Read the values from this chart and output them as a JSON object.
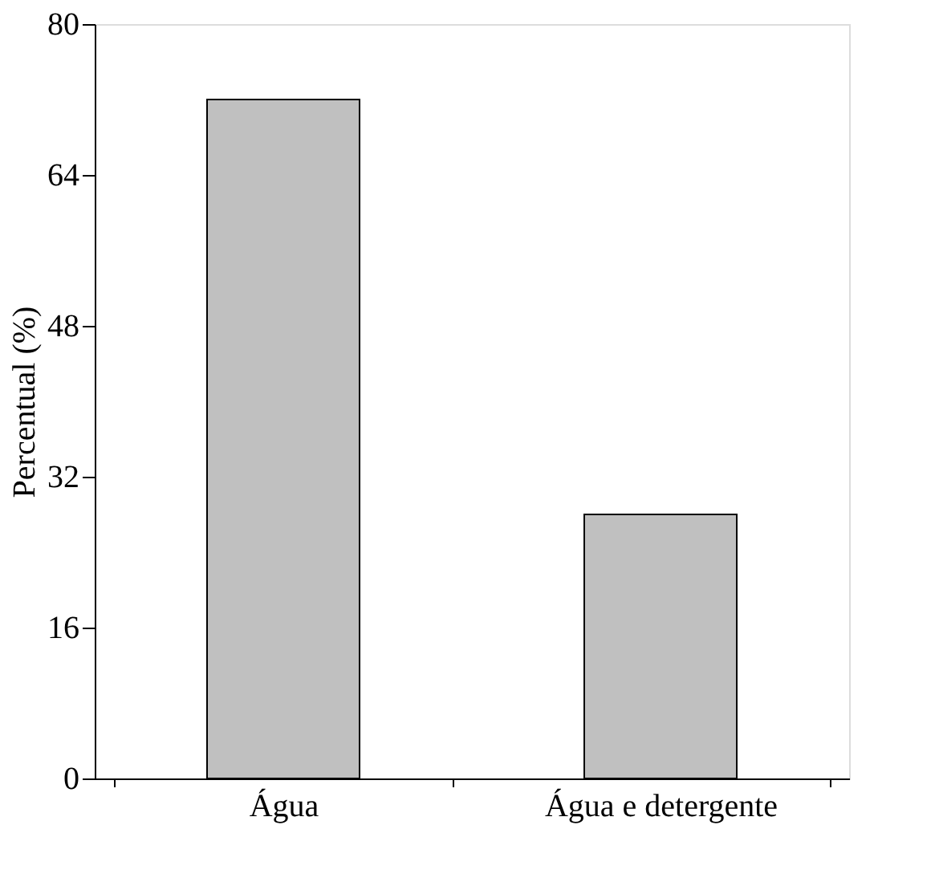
{
  "chart_data": {
    "type": "bar",
    "ylabel": "Percentual (%)",
    "categories": [
      "Água",
      "Água e detergente"
    ],
    "values": [
      72,
      28
    ],
    "color": "#c0c0c0",
    "ylim": [
      0,
      80
    ],
    "yticks": [
      0,
      16,
      32,
      48,
      64,
      80
    ],
    "grid": false
  }
}
